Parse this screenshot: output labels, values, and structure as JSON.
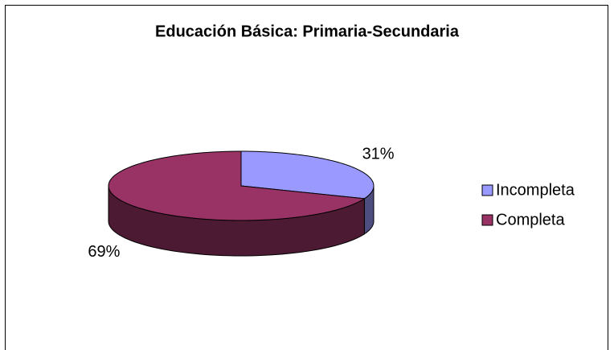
{
  "chart_data": {
    "type": "pie",
    "title": "Educación Básica: Primaria-Secundaria",
    "categories": [
      "Incompleta",
      "Completa"
    ],
    "values": [
      31,
      69
    ],
    "value_labels": [
      "31%",
      "69%"
    ],
    "colors": [
      "#9999ff",
      "#993366"
    ],
    "legend": "right"
  }
}
